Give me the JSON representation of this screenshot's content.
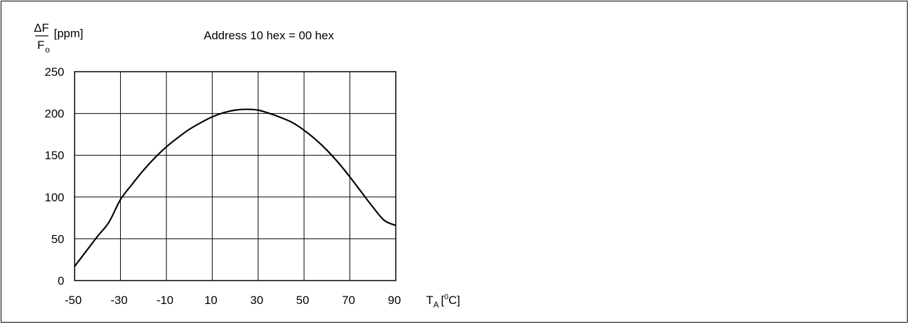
{
  "chart_data": {
    "type": "line",
    "title": "Address 10 hex = 00 hex",
    "ylabel": {
      "numerator": "ΔF",
      "denominator_main": "F",
      "denominator_sub": "o",
      "unit": "[ppm]"
    },
    "xlabel": {
      "main": "T",
      "sub": "A",
      "unit_open": "[",
      "unit_sup": "0",
      "unit_rest": "C]"
    },
    "xlim": [
      -50,
      90
    ],
    "ylim": [
      0,
      250
    ],
    "x_ticks": [
      -50,
      -30,
      -10,
      10,
      30,
      50,
      70,
      90
    ],
    "y_ticks": [
      0,
      50,
      100,
      150,
      200,
      250
    ],
    "grid": true,
    "series": [
      {
        "x": [
          -50,
          -45,
          -40,
          -35,
          -30,
          -25,
          -20,
          -15,
          -10,
          -5,
          0,
          5,
          10,
          15,
          20,
          25,
          30,
          35,
          40,
          45,
          50,
          55,
          60,
          65,
          70,
          75,
          80,
          85,
          90
        ],
        "values": [
          17,
          35,
          53,
          70,
          97,
          115,
          132,
          147,
          160,
          171,
          181,
          189,
          196,
          201,
          204,
          205,
          204,
          200,
          195,
          189,
          180,
          169,
          156,
          141,
          124,
          106,
          88,
          72,
          66
        ]
      }
    ]
  }
}
